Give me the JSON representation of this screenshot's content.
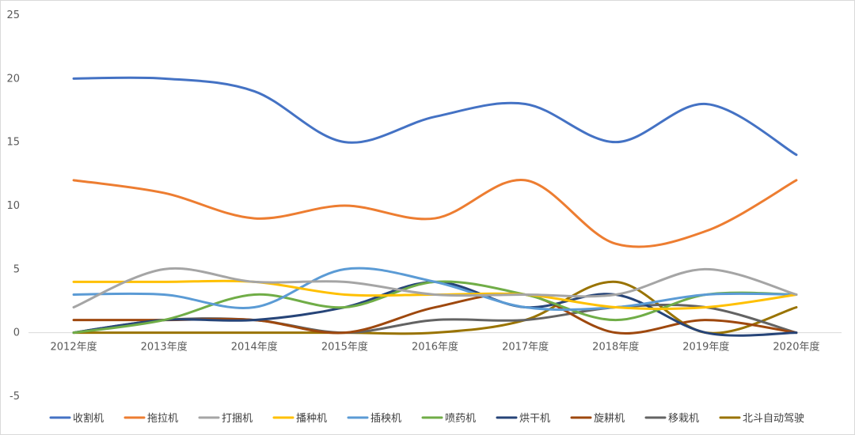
{
  "chart_data": {
    "type": "line",
    "smooth": true,
    "categories": [
      "2012年度",
      "2013年度",
      "2014年度",
      "2015年度",
      "2016年度",
      "2017年度",
      "2018年度",
      "2019年度",
      "2020年度"
    ],
    "ylim": [
      -5,
      25
    ],
    "yticks": [
      -5,
      0,
      5,
      10,
      15,
      20,
      25
    ],
    "grid": false,
    "legend": "bottom",
    "series": [
      {
        "name": "收割机",
        "color": "#4472C4",
        "values": [
          20,
          20,
          19,
          15,
          17,
          18,
          15,
          18,
          14
        ]
      },
      {
        "name": "拖拉机",
        "color": "#ED7D31",
        "values": [
          12,
          11,
          9,
          10,
          9,
          12,
          7,
          8,
          12
        ]
      },
      {
        "name": "打捆机",
        "color": "#A5A5A5",
        "values": [
          2,
          5,
          4,
          4,
          3,
          3,
          3,
          5,
          3
        ]
      },
      {
        "name": "播种机",
        "color": "#FFC000",
        "values": [
          4,
          4,
          4,
          3,
          3,
          3,
          2,
          2,
          3
        ]
      },
      {
        "name": "插秧机",
        "color": "#5B9BD5",
        "values": [
          3,
          3,
          2,
          5,
          4,
          2,
          2,
          3,
          3
        ]
      },
      {
        "name": "喷药机",
        "color": "#70AD47",
        "values": [
          0,
          1,
          3,
          2,
          4,
          3,
          1,
          3,
          3
        ]
      },
      {
        "name": "烘干机",
        "color": "#264478",
        "values": [
          0,
          1,
          1,
          2,
          4,
          2,
          3,
          0,
          0
        ]
      },
      {
        "name": "旋耕机",
        "color": "#9E480E",
        "values": [
          1,
          1,
          1,
          0,
          2,
          3,
          0,
          1,
          0
        ]
      },
      {
        "name": "移栽机",
        "color": "#636363",
        "values": [
          0,
          1,
          1,
          0,
          1,
          1,
          2,
          2,
          0
        ]
      },
      {
        "name": "北斗自动驾驶",
        "color": "#997300",
        "values": [
          0,
          0,
          0,
          0,
          0,
          1,
          4,
          0,
          2
        ]
      }
    ]
  }
}
